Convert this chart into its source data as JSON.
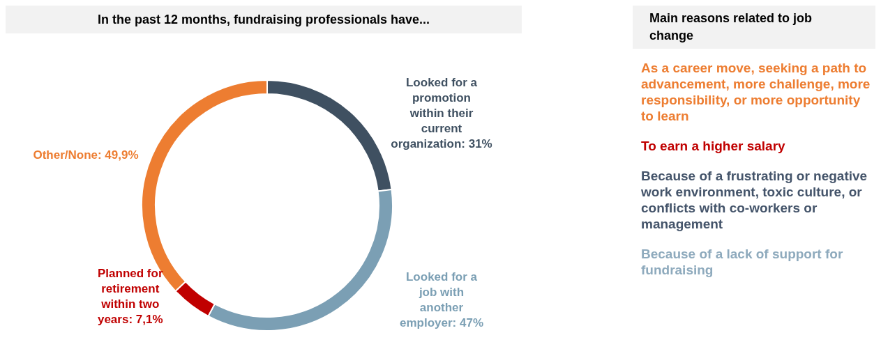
{
  "chart_data": [
    {
      "type": "donut",
      "title": "In the past 12 months, fundraising professionals have...",
      "categories": [
        "Looked for a promotion within their current organization",
        "Looked for a job with another employer",
        "Planned for retirement within two years",
        "Other/None"
      ],
      "values": [
        31,
        47,
        7.1,
        49.9
      ],
      "value_labels": [
        "31%",
        "47%",
        "7,1%",
        "49,9%"
      ],
      "colors": [
        "#3f5061",
        "#7b9fb4",
        "#c00000",
        "#ed7d31"
      ]
    },
    {
      "type": "other",
      "title": "Main reasons related to job change",
      "annotations": [
        "As a career move, seeking a path to advancement, more challenge, more responsibility, or more opportunity to learn",
        "To earn a higher salary",
        "Because of a frustrating or negative work environment, toxic culture, or conflicts with co-workers or management",
        "Because of a lack of support for fundraising"
      ],
      "colors": [
        "#ed7d31",
        "#c00000",
        "#44546a",
        "#8eaabd"
      ]
    }
  ]
}
